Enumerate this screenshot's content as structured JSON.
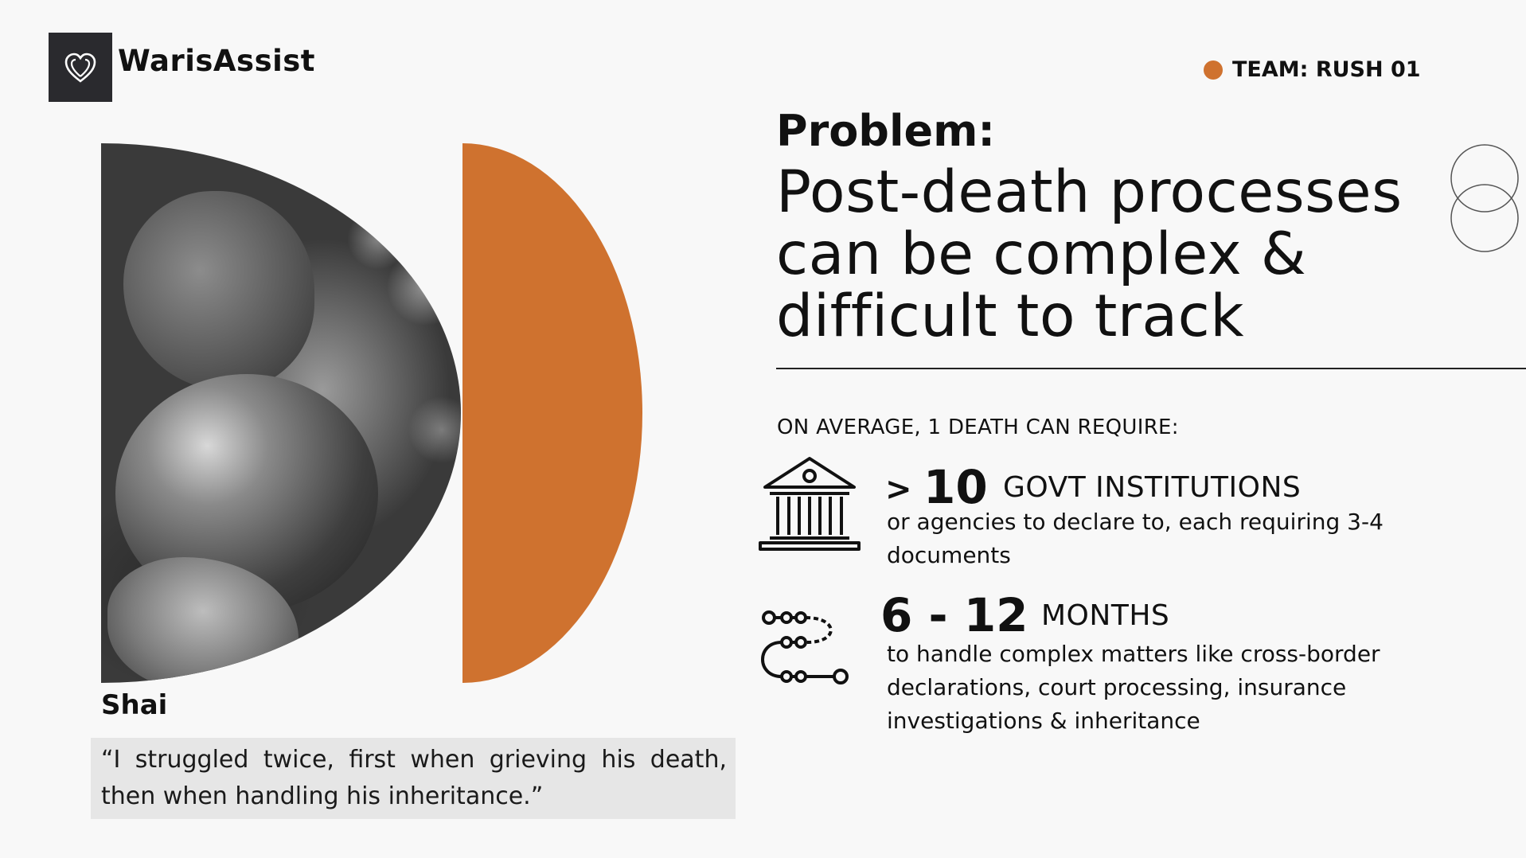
{
  "brand": {
    "name": "WarisAssist",
    "logo_icon": "heart-icon"
  },
  "team": {
    "label": "TEAM: RUSH 01",
    "dot_color": "#cf722f"
  },
  "story": {
    "name": "Shai",
    "quote": "“I struggled twice, first when grieving his death, then when handling his inheritance.”"
  },
  "problem": {
    "label": "Problem:",
    "headline": "Post-death processes can be complex & difficult to track"
  },
  "average_label": "ON AVERAGE, 1 DEATH CAN REQUIRE:",
  "stats": [
    {
      "icon": "government-building-icon",
      "prefix": ">",
      "number": "10",
      "unit": "GOVT INSTITUTIONS",
      "description": "or agencies to declare to, each requiring 3-4 documents"
    },
    {
      "icon": "process-path-icon",
      "number": "6 - 12",
      "unit": "MONTHS",
      "description": "to handle complex matters like cross-border declarations, court processing, insurance investigations & inheritance"
    }
  ],
  "colors": {
    "accent": "#cf722f",
    "logo_bg": "#2a2a2e",
    "quote_bg": "#e6e6e6"
  }
}
